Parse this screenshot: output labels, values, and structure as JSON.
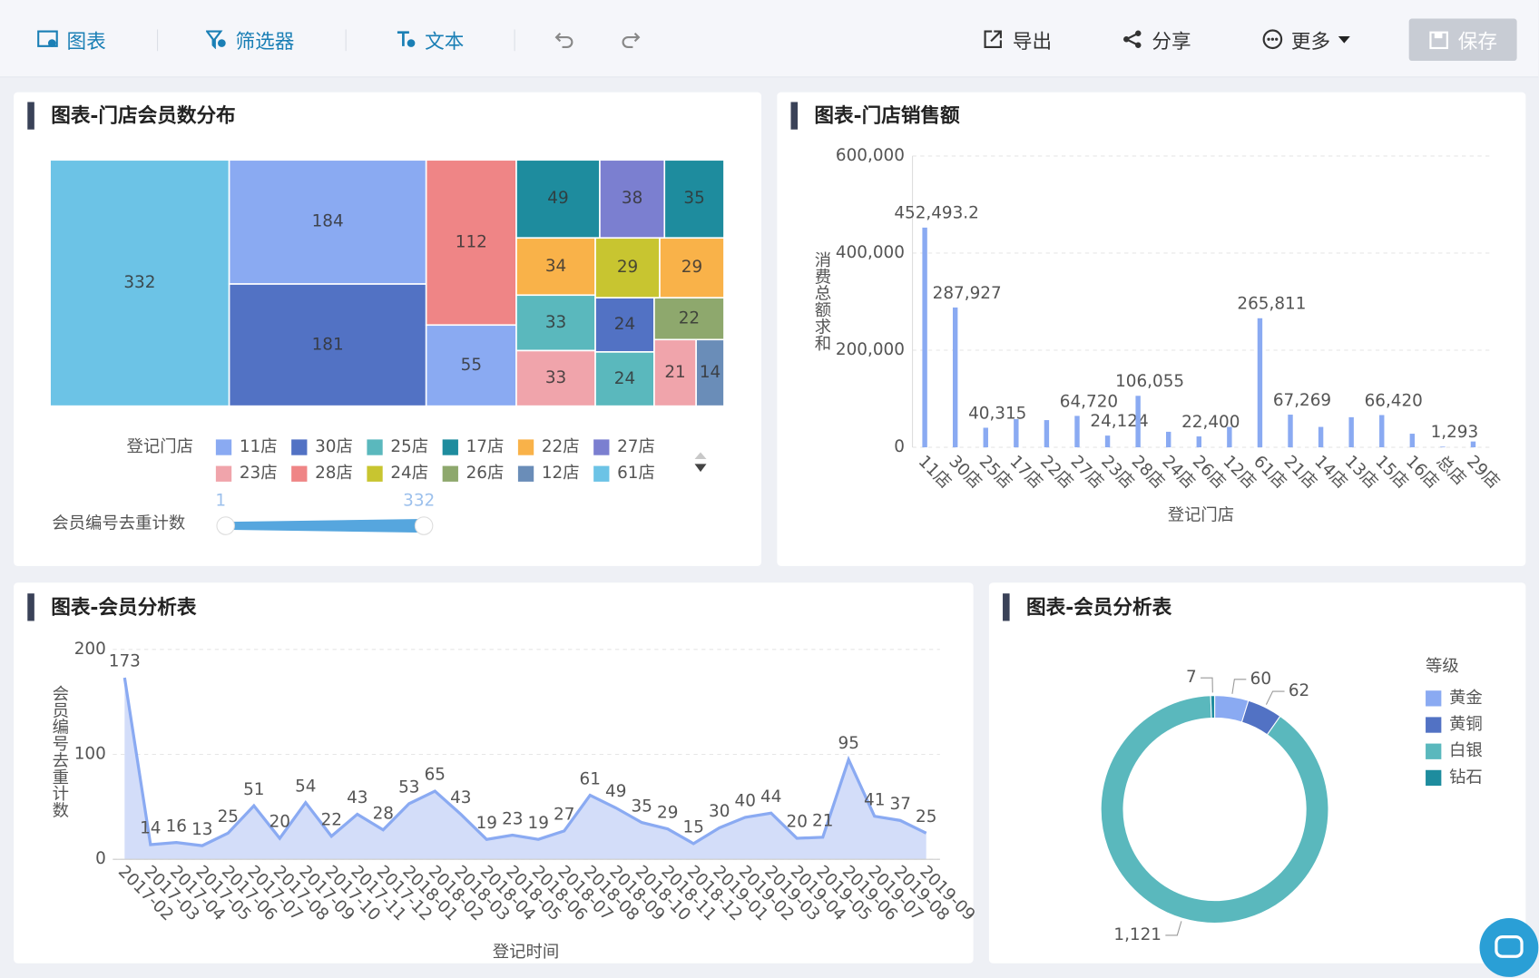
{
  "toolbar": {
    "left": [
      "图表",
      "筛选器",
      "文本"
    ],
    "right": [
      "导出",
      "分享",
      "更多"
    ],
    "save": "保存"
  },
  "chart_data": [
    {
      "type": "treemap",
      "title": "图表-门店会员数分布",
      "values": [
        332,
        184,
        181,
        112,
        55,
        49,
        38,
        35,
        34,
        33,
        33,
        29,
        29,
        24,
        24,
        22,
        21,
        14
      ],
      "colors": [
        "#6cc3e6",
        "#8aaaf2",
        "#5272c4",
        "#ef8586",
        "#8aaaf2",
        "#1e8c9e",
        "#7b7fd0",
        "#1e8c9e",
        "#f9b249",
        "#5ab8bd",
        "#f0a4ab",
        "#c8c530",
        "#f9b249",
        "#5272c4",
        "#5ab8bd",
        "#8ea86d",
        "#f0a4ab",
        "#6a8db8"
      ],
      "legend": {
        "title": "登记门店",
        "names": [
          "11店",
          "30店",
          "25店",
          "17店",
          "22店",
          "27店",
          "23店",
          "28店",
          "24店",
          "26店",
          "12店",
          "61店"
        ],
        "colors": [
          "#8aaaf2",
          "#5272c4",
          "#5ab8bd",
          "#1e8c9e",
          "#f9b249",
          "#7b7fd0",
          "#f0a4ab",
          "#ef8586",
          "#c8c530",
          "#8ea86d",
          "#6a8db8",
          "#6cc3e6"
        ]
      },
      "visual_map": {
        "title": "会员编号去重计数",
        "range": [
          1,
          332
        ]
      }
    },
    {
      "type": "bar",
      "title": "图表-门店销售额",
      "y_label": "消费总额求和",
      "x_label": "登记门店",
      "categories": [
        "11店",
        "30店",
        "25店",
        "17店",
        "22店",
        "27店",
        "23店",
        "28店",
        "24店",
        "26店",
        "12店",
        "61店",
        "21店",
        "14店",
        "13店",
        "15店",
        "16店",
        "总店",
        "29店"
      ],
      "values": [
        452493.2,
        287927,
        40315,
        58000,
        56000,
        64720,
        24124,
        106055,
        32000,
        22400,
        42000,
        265811,
        67269,
        42000,
        62000,
        66420,
        28000,
        1293,
        12000
      ],
      "value_labels": [
        "452,493.2",
        "287,927",
        "40,315",
        null,
        null,
        "64,720",
        "24,124",
        "106,055",
        null,
        "22,400",
        null,
        "265,811",
        "67,269",
        null,
        null,
        "66,420",
        null,
        "1,293",
        null
      ],
      "color": "#8aaaf2",
      "ylim": [
        0,
        600000
      ],
      "yticks": [
        0,
        {
          "value": 200000,
          "label": "200,000"
        },
        {
          "value": 400000,
          "label": "400,000"
        },
        {
          "value": 600000,
          "label": "600,000"
        }
      ],
      "grid": true
    },
    {
      "type": "area",
      "title": "图表-会员分析表",
      "y_label": "会员编号去重计数",
      "x_label": "登记时间",
      "x": [
        "2017-02",
        "2017-03",
        "2017-04",
        "2017-05",
        "2017-06",
        "2017-07",
        "2017-08",
        "2017-09",
        "2017-10",
        "2017-11",
        "2017-12",
        "2018-01",
        "2018-02",
        "2018-03",
        "2018-04",
        "2018-05",
        "2018-06",
        "2018-07",
        "2018-08",
        "2018-09",
        "2018-10",
        "2018-11",
        "2018-12",
        "2019-01",
        "2019-02",
        "2019-03",
        "2019-04",
        "2019-05",
        "2019-06",
        "2019-07",
        "2019-08",
        "2019-09"
      ],
      "values": [
        173,
        14,
        16,
        13,
        25,
        51,
        20,
        54,
        22,
        43,
        28,
        53,
        65,
        43,
        19,
        23,
        19,
        27,
        61,
        49,
        35,
        29,
        15,
        30,
        40,
        44,
        20,
        21,
        95,
        41,
        37,
        25
      ],
      "color": "#8aaaf2",
      "fill": "#d3ddf9",
      "ylim": [
        0,
        200
      ],
      "yticks": [
        0,
        100,
        200
      ],
      "grid": true
    },
    {
      "type": "donut",
      "title": "图表-会员分析表",
      "legend_title": "等级",
      "categories": [
        "黄金",
        "黄铜",
        "白银",
        "钻石"
      ],
      "values": [
        60,
        62,
        1121,
        7
      ],
      "value_labels": [
        "60",
        "62",
        "1,121",
        "7"
      ],
      "colors": [
        "#8aaaf2",
        "#5272c4",
        "#5ab8bd",
        "#1e8c9e"
      ]
    }
  ]
}
